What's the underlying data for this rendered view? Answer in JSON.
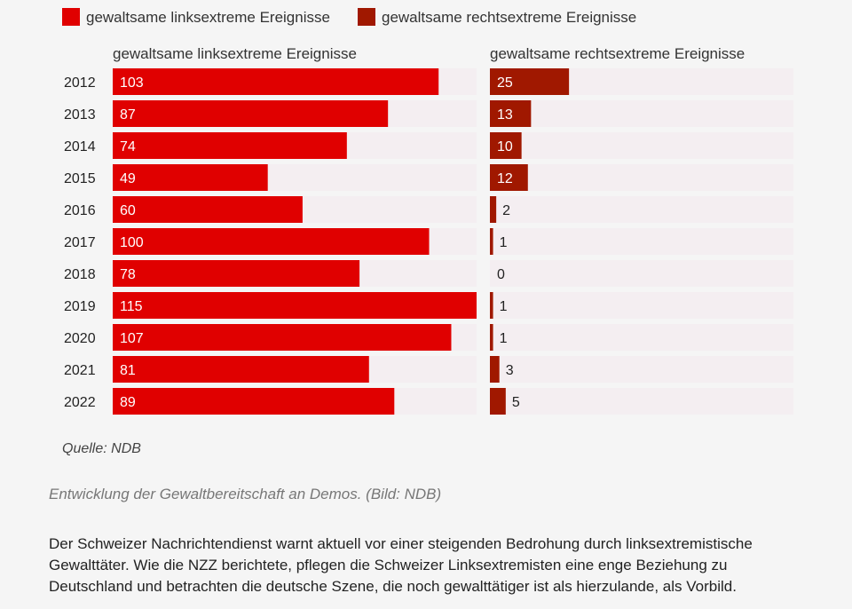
{
  "chart_data": {
    "type": "bar",
    "orientation": "horizontal",
    "categories": [
      "2012",
      "2013",
      "2014",
      "2015",
      "2016",
      "2017",
      "2018",
      "2019",
      "2020",
      "2021",
      "2022"
    ],
    "series": [
      {
        "name": "gewaltsame linksextreme Ereignisse",
        "color": "#e00000",
        "values": [
          103,
          87,
          74,
          49,
          60,
          100,
          78,
          115,
          107,
          81,
          89
        ]
      },
      {
        "name": "gewaltsame rechtsextreme Ereignisse",
        "color": "#a01800",
        "values": [
          25,
          13,
          10,
          12,
          2,
          1,
          0,
          1,
          1,
          3,
          5
        ]
      }
    ],
    "panel_titles": [
      "gewaltsame linksextreme Ereignisse",
      "gewaltsame rechtsextreme Ereignisse"
    ],
    "legend": {
      "position": "top-left",
      "entries": [
        "gewaltsame linksextreme Ereignisse",
        "gewaltsame rechtsextreme Ereignisse"
      ]
    },
    "xlim": [
      0,
      115
    ],
    "grid": false,
    "track_color": "#f4eef1"
  },
  "source": "Quelle: NDB",
  "caption": "Entwicklung der Gewaltbereitschaft an Demos. (Bild: NDB)",
  "body_text": "Der Schweizer Nachrichtendienst warnt aktuell vor einer steigenden Bedrohung durch linksextremistische Gewalttäter. Wie die NZZ berichtete, pflegen die Schweizer Linksextremisten eine enge Beziehung zu Deutschland und betrachten die deutsche Szene, die noch gewalttätiger ist als hierzulande, als Vorbild."
}
